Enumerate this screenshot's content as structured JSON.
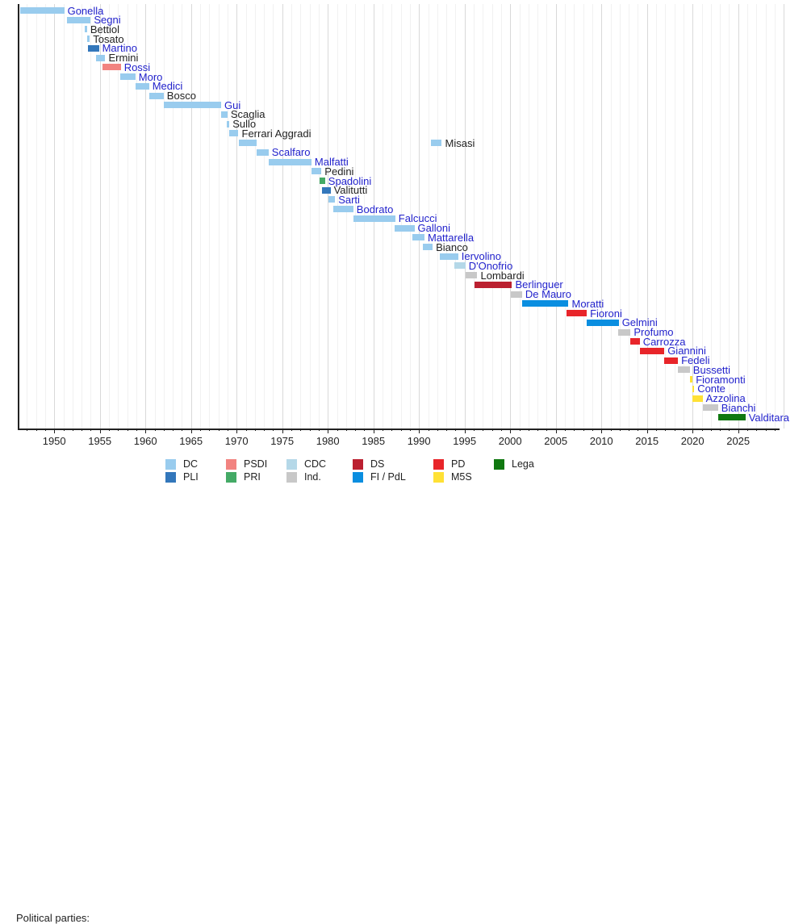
{
  "colors": {
    "link_blue": "#2222CC",
    "text_black": "#222222",
    "axis": "#222222",
    "grid_minor": "#F1F1F1",
    "grid_major": "#D9D9D9",
    "parties": {
      "DC": "#99CCEE",
      "PLI": "#3377BB",
      "PSDI": "#F28380",
      "PRI": "#44AA66",
      "CDC": "#B5D8E8",
      "Ind": "#C8C8C8",
      "DS": "#BB2030",
      "PD": "#E8252A",
      "FI_PdL": "#0A8EE0",
      "M5S": "#FFE135",
      "Lega": "#107810"
    }
  },
  "legend": {
    "heading": "Political parties:",
    "items": [
      {
        "label": "DC",
        "party": "DC",
        "row": 1,
        "col": 1
      },
      {
        "label": "PSDI",
        "party": "PSDI",
        "row": 1,
        "col": 2
      },
      {
        "label": "CDC",
        "party": "CDC",
        "row": 1,
        "col": 3
      },
      {
        "label": "DS",
        "party": "DS",
        "row": 1,
        "col": 4
      },
      {
        "label": "PD",
        "party": "PD",
        "row": 1,
        "col": 5
      },
      {
        "label": "Lega",
        "party": "Lega",
        "row": 1,
        "col": 6
      },
      {
        "label": "PLI",
        "party": "PLI",
        "row": 2,
        "col": 1
      },
      {
        "label": "PRI",
        "party": "PRI",
        "row": 2,
        "col": 2
      },
      {
        "label": "Ind.",
        "party": "Ind",
        "row": 2,
        "col": 3
      },
      {
        "label": "FI / PdL",
        "party": "FI_PdL",
        "row": 2,
        "col": 4
      },
      {
        "label": "M5S",
        "party": "M5S",
        "row": 2,
        "col": 5
      }
    ]
  },
  "chart_data": {
    "type": "bar",
    "subtype": "timeline-gantt",
    "title": "",
    "xlabel": "",
    "ylabel": "",
    "xlim": [
      1946,
      2029.5
    ],
    "grid": {
      "show": true,
      "minor_every_years": 1,
      "major_every_years": 5
    },
    "axis_tick_labels": [
      "1950",
      "1955",
      "1960",
      "1965",
      "1970",
      "1975",
      "1980",
      "1985",
      "1990",
      "1995",
      "2000",
      "2005",
      "2010",
      "2015",
      "2020",
      "2025"
    ],
    "axis_tick_years": [
      1950,
      1955,
      1960,
      1965,
      1970,
      1975,
      1980,
      1985,
      1990,
      1995,
      2000,
      2005,
      2010,
      2015,
      2020,
      2025
    ],
    "ministers": [
      {
        "name": "Gonella",
        "party": "DC",
        "link": true,
        "terms": [
          [
            1946.3,
            1951.1
          ]
        ]
      },
      {
        "name": "Segni",
        "party": "DC",
        "link": true,
        "terms": [
          [
            1951.4,
            1954.0
          ]
        ]
      },
      {
        "name": "Bettiol",
        "party": "DC",
        "link": false,
        "terms": [
          [
            1953.3,
            1953.6
          ]
        ]
      },
      {
        "name": "Tosato",
        "party": "DC",
        "link": false,
        "terms": [
          [
            1953.6,
            1953.9
          ]
        ]
      },
      {
        "name": "Martino",
        "party": "PLI",
        "link": true,
        "terms": [
          [
            1953.7,
            1954.9
          ]
        ]
      },
      {
        "name": "Ermini",
        "party": "DC",
        "link": false,
        "terms": [
          [
            1954.6,
            1955.6
          ]
        ]
      },
      {
        "name": "Rossi",
        "party": "PSDI",
        "link": true,
        "terms": [
          [
            1955.3,
            1957.3
          ]
        ]
      },
      {
        "name": "Moro",
        "party": "DC",
        "link": true,
        "terms": [
          [
            1957.2,
            1958.9
          ]
        ]
      },
      {
        "name": "Medici",
        "party": "DC",
        "link": true,
        "terms": [
          [
            1958.9,
            1960.4
          ]
        ]
      },
      {
        "name": "Bosco",
        "party": "DC",
        "link": false,
        "terms": [
          [
            1960.4,
            1962.0
          ]
        ]
      },
      {
        "name": "Gui",
        "party": "DC",
        "link": true,
        "terms": [
          [
            1962.0,
            1968.3
          ]
        ]
      },
      {
        "name": "Scaglia",
        "party": "DC",
        "link": false,
        "terms": [
          [
            1968.3,
            1969.0
          ]
        ]
      },
      {
        "name": "Sullo",
        "party": "DC",
        "link": false,
        "terms": [
          [
            1968.9,
            1969.2
          ]
        ]
      },
      {
        "name": "Ferrari Aggradi",
        "party": "DC",
        "link": false,
        "terms": [
          [
            1969.2,
            1970.2
          ]
        ]
      },
      {
        "name": "Misasi",
        "party": "DC",
        "link": false,
        "terms": [
          [
            1970.2,
            1972.2
          ],
          [
            1991.3,
            1992.5
          ]
        ]
      },
      {
        "name": "Scalfaro",
        "party": "DC",
        "link": true,
        "terms": [
          [
            1972.2,
            1973.5
          ]
        ]
      },
      {
        "name": "Malfatti",
        "party": "DC",
        "link": true,
        "terms": [
          [
            1973.5,
            1978.2
          ]
        ]
      },
      {
        "name": "Pedini",
        "party": "DC",
        "link": false,
        "terms": [
          [
            1978.2,
            1979.3
          ]
        ]
      },
      {
        "name": "Spadolini",
        "party": "PRI",
        "link": true,
        "terms": [
          [
            1979.1,
            1979.7
          ]
        ]
      },
      {
        "name": "Valitutti",
        "party": "PLI",
        "link": false,
        "terms": [
          [
            1979.4,
            1980.3
          ]
        ]
      },
      {
        "name": "Sarti",
        "party": "DC",
        "link": true,
        "terms": [
          [
            1980.1,
            1980.8
          ]
        ]
      },
      {
        "name": "Bodrato",
        "party": "DC",
        "link": true,
        "terms": [
          [
            1980.6,
            1982.8
          ]
        ]
      },
      {
        "name": "Falcucci",
        "party": "DC",
        "link": true,
        "terms": [
          [
            1982.8,
            1987.4
          ]
        ]
      },
      {
        "name": "Galloni",
        "party": "DC",
        "link": true,
        "terms": [
          [
            1987.3,
            1989.5
          ]
        ]
      },
      {
        "name": "Mattarella",
        "party": "DC",
        "link": true,
        "terms": [
          [
            1989.3,
            1990.6
          ]
        ]
      },
      {
        "name": "Bianco",
        "party": "DC",
        "link": false,
        "terms": [
          [
            1990.4,
            1991.5
          ]
        ]
      },
      {
        "name": "Iervolino",
        "party": "DC",
        "link": true,
        "terms": [
          [
            1992.3,
            1994.3
          ]
        ]
      },
      {
        "name": "D'Onofrio",
        "party": "CDC",
        "link": true,
        "terms": [
          [
            1993.9,
            1995.1
          ]
        ]
      },
      {
        "name": "Lombardi",
        "party": "Ind",
        "link": false,
        "terms": [
          [
            1995.1,
            1996.4
          ]
        ]
      },
      {
        "name": "Berlinguer",
        "party": "DS",
        "link": true,
        "terms": [
          [
            1996.1,
            2000.2
          ]
        ]
      },
      {
        "name": "De Mauro",
        "party": "Ind",
        "link": true,
        "terms": [
          [
            2000.1,
            2001.3
          ]
        ]
      },
      {
        "name": "Moratti",
        "party": "FI_PdL",
        "link": true,
        "terms": [
          [
            2001.3,
            2006.4
          ]
        ]
      },
      {
        "name": "Fioroni",
        "party": "PD",
        "link": true,
        "terms": [
          [
            2006.2,
            2008.4
          ]
        ]
      },
      {
        "name": "Gelmini",
        "party": "FI_PdL",
        "link": true,
        "terms": [
          [
            2008.4,
            2011.9
          ]
        ]
      },
      {
        "name": "Profumo",
        "party": "Ind",
        "link": true,
        "terms": [
          [
            2011.8,
            2013.2
          ]
        ]
      },
      {
        "name": "Carrozza",
        "party": "PD",
        "link": true,
        "terms": [
          [
            2013.2,
            2014.2
          ]
        ]
      },
      {
        "name": "Giannini",
        "party": "PD",
        "link": true,
        "terms": [
          [
            2014.2,
            2016.9
          ]
        ]
      },
      {
        "name": "Fedeli",
        "party": "PD",
        "link": true,
        "terms": [
          [
            2016.9,
            2018.4
          ]
        ]
      },
      {
        "name": "Bussetti",
        "party": "Ind",
        "link": true,
        "terms": [
          [
            2018.4,
            2019.7
          ]
        ]
      },
      {
        "name": "Fioramonti",
        "party": "M5S",
        "link": true,
        "terms": [
          [
            2019.7,
            2020.0
          ]
        ]
      },
      {
        "name": "Conte",
        "party": "M5S",
        "link": true,
        "terms": [
          [
            2020.0,
            2020.15
          ]
        ]
      },
      {
        "name": "Azzolina",
        "party": "M5S",
        "link": true,
        "terms": [
          [
            2020.0,
            2021.1
          ]
        ]
      },
      {
        "name": "Bianchi",
        "party": "Ind",
        "link": true,
        "terms": [
          [
            2021.1,
            2022.8
          ]
        ]
      },
      {
        "name": "Valditara",
        "party": "Lega",
        "link": true,
        "terms": [
          [
            2022.8,
            2025.8
          ]
        ]
      }
    ]
  }
}
